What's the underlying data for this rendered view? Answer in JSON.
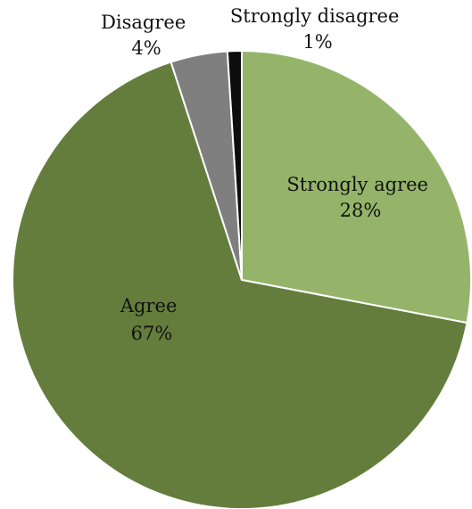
{
  "chart_data": {
    "type": "pie",
    "title": "",
    "slices": [
      {
        "label": "Strongly agree",
        "value": 28,
        "display": "28%",
        "color": "#95b46a"
      },
      {
        "label": "Agree",
        "value": 67,
        "display": "67%",
        "color": "#647d3c"
      },
      {
        "label": "Disagree",
        "value": 4,
        "display": "4%",
        "color": "#7f7f7f"
      },
      {
        "label": "Strongly disagree",
        "value": 1,
        "display": "1%",
        "color": "#0d0d0d"
      }
    ],
    "start_angle_deg": 0,
    "direction": "clockwise",
    "legend": "none",
    "data_labels": "category name and percentage"
  }
}
